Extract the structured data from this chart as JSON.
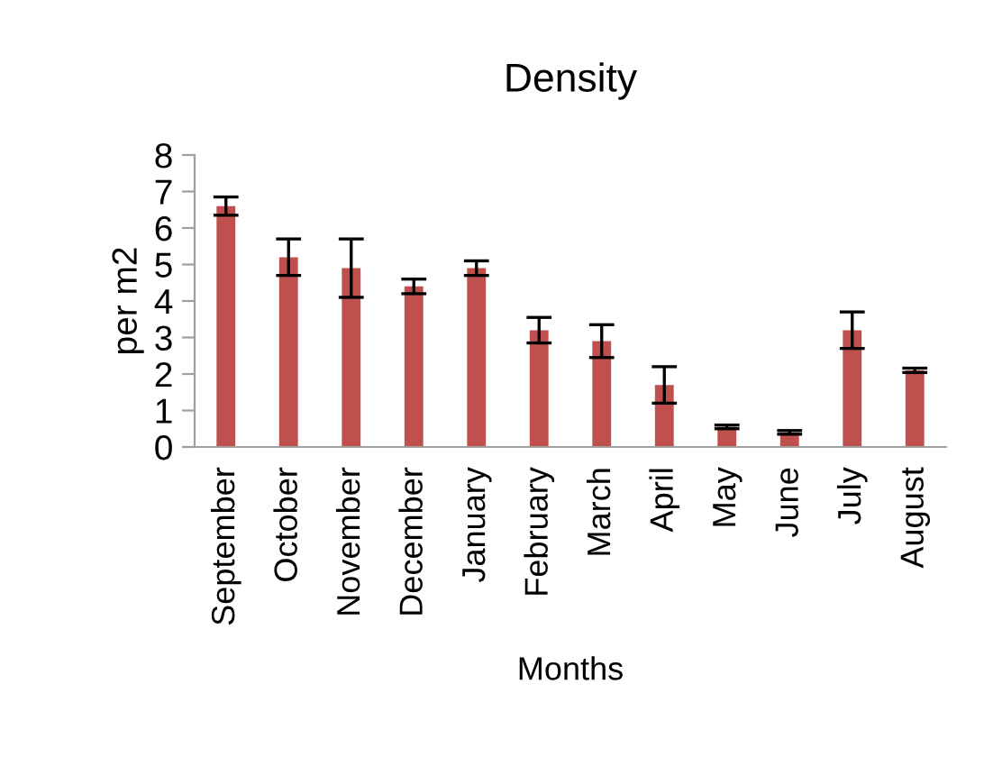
{
  "chart_data": {
    "type": "bar",
    "title": "Density",
    "xlabel": "Months",
    "ylabel": "per m2",
    "categories": [
      "September",
      "October",
      "November",
      "December",
      "January",
      "February",
      "March",
      "April",
      "May",
      "June",
      "July",
      "August"
    ],
    "values": [
      6.6,
      5.2,
      4.9,
      4.4,
      4.9,
      3.2,
      2.9,
      1.7,
      0.55,
      0.4,
      3.2,
      2.1
    ],
    "errors": [
      0.25,
      0.5,
      0.8,
      0.2,
      0.2,
      0.35,
      0.45,
      0.5,
      0.05,
      0.05,
      0.5,
      0.06
    ],
    "color": "#c0504d",
    "ylim": [
      0,
      8
    ],
    "yticks": [
      0,
      1,
      2,
      3,
      4,
      5,
      6,
      7,
      8
    ],
    "grid": false,
    "legend": false
  }
}
